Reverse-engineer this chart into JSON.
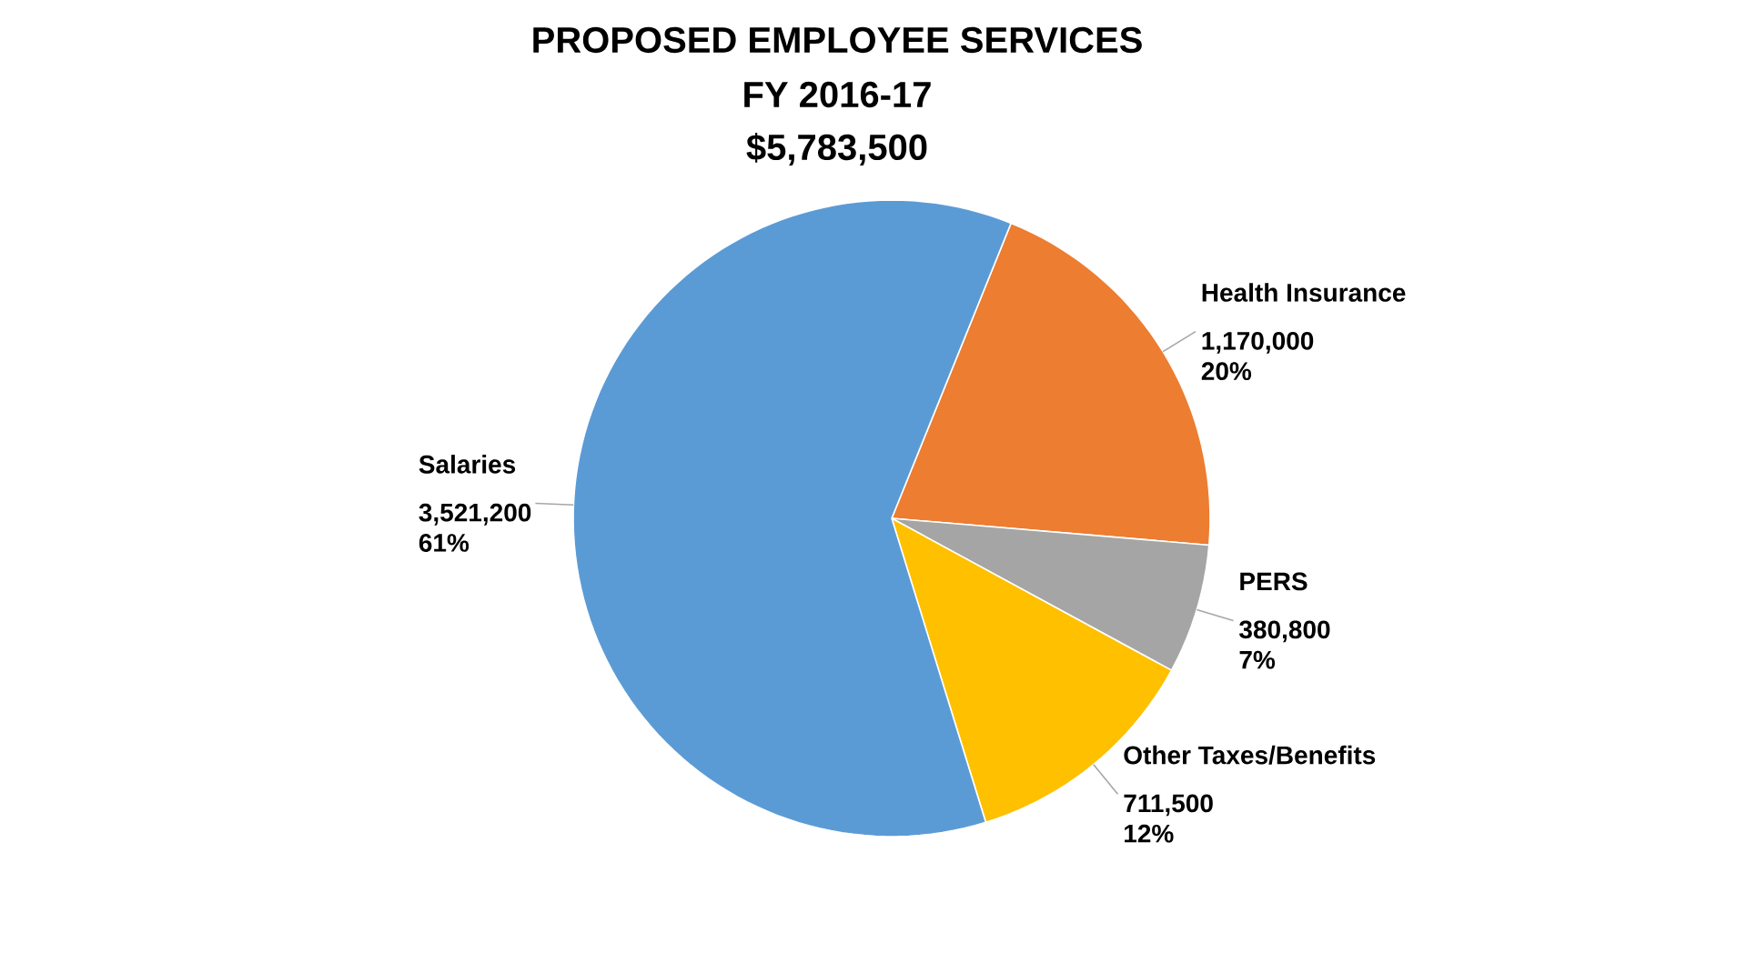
{
  "chart_data": {
    "type": "pie",
    "title": "PROPOSED EMPLOYEE SERVICES",
    "subtitle": "FY 2016-17",
    "annotations": [
      "$5,783,500"
    ],
    "categories": [
      "Health Insurance",
      "PERS",
      "Other Taxes/Benefits",
      "Salaries"
    ],
    "values": [
      1170000,
      380800,
      711500,
      3521200
    ],
    "value_labels": [
      "1,170,000 20%",
      "380,800 7%",
      "711,500 12%",
      "3,521,200 61%"
    ],
    "colors": [
      "#ed7d31",
      "#a5a5a5",
      "#ffc000",
      "#5b9bd5"
    ]
  }
}
